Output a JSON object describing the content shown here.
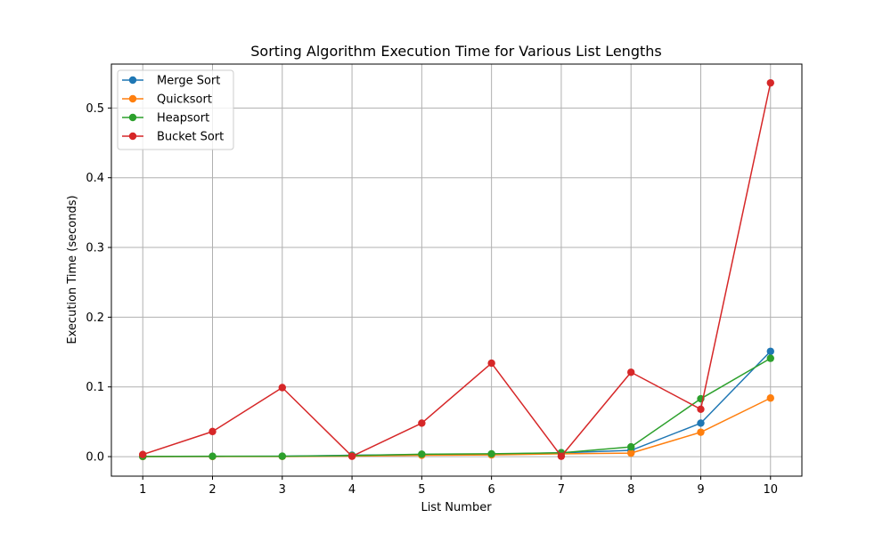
{
  "chart_data": {
    "type": "line",
    "title": "Sorting Algorithm Execution Time for Various List Lengths",
    "xlabel": "List Number",
    "ylabel": "Execution Time (seconds)",
    "x": [
      1,
      2,
      3,
      4,
      5,
      6,
      7,
      8,
      9,
      10
    ],
    "xlim": [
      0.55,
      10.45
    ],
    "ylim": [
      -0.028,
      0.563
    ],
    "xticks": [
      "1",
      "2",
      "3",
      "4",
      "5",
      "6",
      "7",
      "8",
      "9",
      "10"
    ],
    "yticks": [
      0.0,
      0.1,
      0.2,
      0.3,
      0.4,
      0.5
    ],
    "ytick_labels": [
      "0.0",
      "0.1",
      "0.2",
      "0.3",
      "0.4",
      "0.5"
    ],
    "grid": true,
    "legend_position": "top-left",
    "series": [
      {
        "name": "Merge Sort",
        "color": "#1f77b4",
        "values": [
          0.0002,
          0.0003,
          0.0005,
          0.002,
          0.003,
          0.0035,
          0.0055,
          0.009,
          0.048,
          0.151
        ]
      },
      {
        "name": "Quicksort",
        "color": "#ff7f0e",
        "values": [
          0.0001,
          0.0002,
          0.0003,
          0.0008,
          0.002,
          0.0025,
          0.004,
          0.005,
          0.035,
          0.084
        ]
      },
      {
        "name": "Heapsort",
        "color": "#2ca02c",
        "values": [
          0.0003,
          0.0005,
          0.0006,
          0.0015,
          0.0035,
          0.004,
          0.0055,
          0.014,
          0.083,
          0.141
        ]
      },
      {
        "name": "Bucket Sort",
        "color": "#d62728",
        "values": [
          0.003,
          0.036,
          0.099,
          0.0005,
          0.048,
          0.134,
          0.0005,
          0.121,
          0.068,
          0.536
        ]
      }
    ]
  }
}
